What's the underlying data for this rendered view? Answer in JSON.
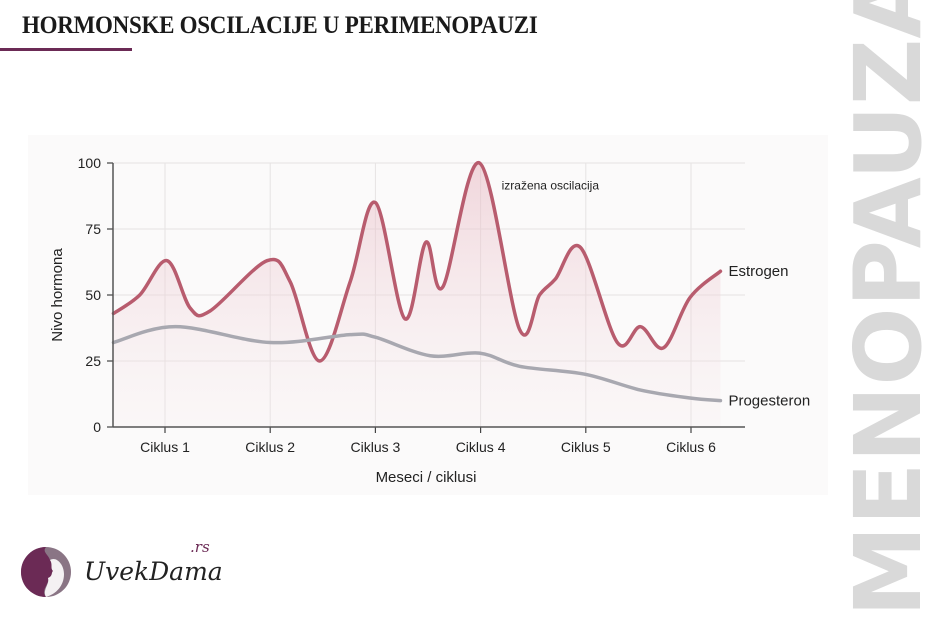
{
  "header": {
    "title": "HORMONSKE OSCILACIJE U PERIMENOPAUZI",
    "side_text": "MENOPAUZA"
  },
  "brand": {
    "name": "UvekDama",
    "tld": ".rs",
    "color": "#6b2a55"
  },
  "chart_data": {
    "type": "line",
    "title": "",
    "xlabel": "Meseci / ciklusi",
    "ylabel": "Nivo hormona",
    "ylim": [
      0,
      100
    ],
    "xlim": [
      0.51,
      6.8
    ],
    "yticks": [
      0,
      25,
      50,
      75,
      100
    ],
    "categories": [
      "Ciklus 1",
      "Ciklus 2",
      "Ciklus 3",
      "Ciklus 4",
      "Ciklus 5",
      "Ciklus 6"
    ],
    "grid": true,
    "annotation": {
      "text": "izražena oscilacija",
      "x": 4.2,
      "y": 90
    },
    "series": [
      {
        "name": "Estrogen",
        "color": "#b85c6e",
        "fill": true,
        "x": [
          0.51,
          0.76,
          1.02,
          1.24,
          1.43,
          1.97,
          2.19,
          2.47,
          2.76,
          3.0,
          3.28,
          3.48,
          3.64,
          3.99,
          4.37,
          4.56,
          4.71,
          4.95,
          5.3,
          5.52,
          5.74,
          5.99,
          6.28
        ],
        "y": [
          43,
          50,
          63,
          45,
          44,
          63,
          55,
          25,
          55,
          85,
          41,
          70,
          53,
          100,
          37,
          50,
          56,
          68,
          32,
          38,
          30,
          49,
          59
        ]
      },
      {
        "name": "Progesteron",
        "color": "#a8a8b0",
        "fill": false,
        "x": [
          0.51,
          1.1,
          2.0,
          2.76,
          3.0,
          3.52,
          3.99,
          4.37,
          4.99,
          5.52,
          5.99,
          6.28
        ],
        "y": [
          32,
          38,
          32,
          35,
          34,
          27,
          28,
          23,
          20,
          14,
          11,
          10
        ]
      }
    ]
  }
}
